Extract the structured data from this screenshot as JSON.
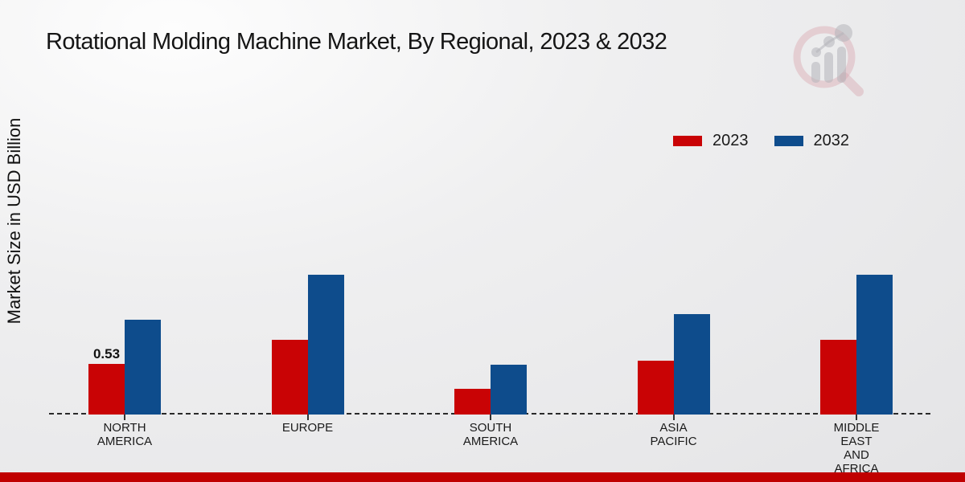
{
  "page": {
    "footer_color": "#c00000"
  },
  "icons": {
    "logo": "magnifier-bar-chart-watermark"
  },
  "legend": {
    "items": [
      {
        "label": "2023",
        "color": "#c90305"
      },
      {
        "label": "2032",
        "color": "#0e4c8c"
      }
    ]
  },
  "chart_data": {
    "type": "bar",
    "title": "Rotational Molding Machine Market, By Regional, 2023 & 2032",
    "xlabel": "",
    "ylabel": "Market Size in USD Billion",
    "unit": "USD Billion",
    "categories": [
      "NORTH AMERICA",
      "EUROPE",
      "SOUTH AMERICA",
      "ASIA PACIFIC",
      "MIDDLE EAST AND AFRICA"
    ],
    "category_label_lines": [
      [
        "NORTH",
        "AMERICA"
      ],
      [
        "EUROPE"
      ],
      [
        "SOUTH",
        "AMERICA"
      ],
      [
        "ASIA",
        "PACIFIC"
      ],
      [
        "MIDDLE",
        "EAST",
        "AND",
        "AFRICA"
      ]
    ],
    "series": [
      {
        "name": "2023",
        "color": "#c90305",
        "values": [
          0.53,
          0.78,
          0.27,
          0.56,
          0.78
        ]
      },
      {
        "name": "2032",
        "color": "#0e4c8c",
        "values": [
          0.99,
          1.46,
          0.52,
          1.05,
          1.46
        ]
      }
    ],
    "data_labels": [
      [
        "0.53",
        null,
        null,
        null,
        null
      ],
      [
        null,
        null,
        null,
        null,
        null
      ]
    ],
    "ylim": [
      0,
      1.6
    ],
    "grid": false,
    "baseline_style": "dashed",
    "legend_position": "top-right"
  }
}
